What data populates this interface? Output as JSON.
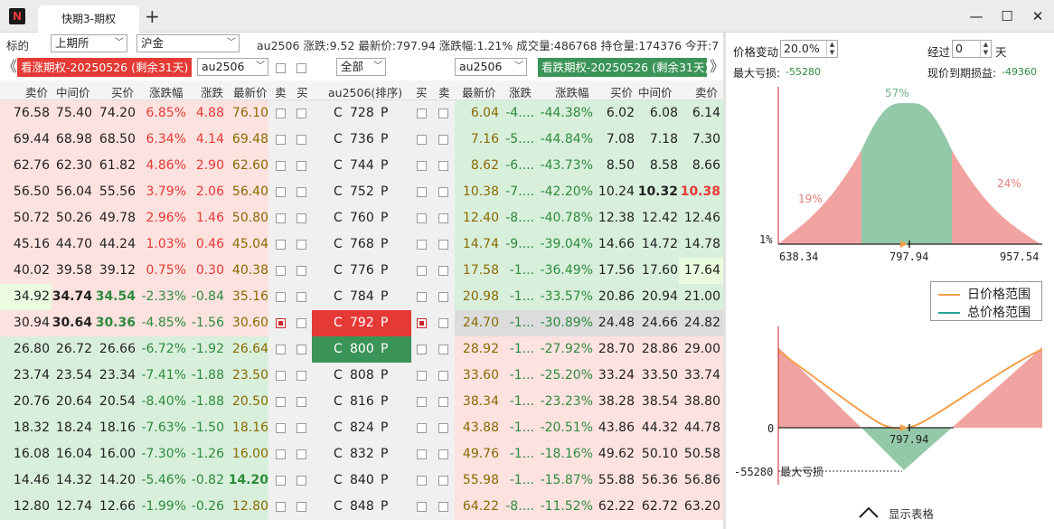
{
  "window": {
    "tab_title": "快期3-期权",
    "add_tab": "+",
    "minimize": "—",
    "maximize": "☐",
    "close": "✕",
    "logo": "N"
  },
  "filter": {
    "label": "标的",
    "exchange": "上期所",
    "product": "沪金",
    "info": "au2506 涨跌:9.52 最新价:797.94 涨跌幅:1.21% 成交量:486768 持仓量:174376 今开:7"
  },
  "optbar": {
    "call_badge": "看涨期权-20250526 (剩余31天)",
    "call_month": "au2506",
    "filter_all": "全部",
    "put_month": "au2506",
    "put_badge": "看跌期权-20250526 (剩余31天)",
    "prev": "《",
    "next": "》",
    "call_color": "#e53935",
    "put_color": "#3a9457"
  },
  "headers": {
    "ask": "卖价",
    "mid": "中间价",
    "bid": "买价",
    "chg_pct": "涨跌幅",
    "chg": "涨跌",
    "last": "最新价",
    "sell": "卖",
    "buy": "买",
    "strike": "au2506(排序)",
    "buy2": "买",
    "sell2": "卖",
    "last2": "最新价",
    "chg2": "涨跌",
    "chg_pct2": "涨跌幅",
    "bid2": "买价",
    "mid2": "中间价",
    "ask2": "卖价"
  },
  "rows": [
    {
      "ca": "76.58",
      "cm": "75.40",
      "cb": "74.20",
      "cp": "6.85%",
      "cc": "4.88",
      "cl": "76.10",
      "c": "C",
      "k": "728",
      "p": "P",
      "pl": "6.04",
      "pc": "-4....",
      "pp": "-44.38%",
      "pb": "6.02",
      "pm": "6.08",
      "pa": "6.14"
    },
    {
      "ca": "69.44",
      "cm": "68.98",
      "cb": "68.50",
      "cp": "6.34%",
      "cc": "4.14",
      "cl": "69.48",
      "c": "C",
      "k": "736",
      "p": "P",
      "pl": "7.16",
      "pc": "-5....",
      "pp": "-44.84%",
      "pb": "7.08",
      "pm": "7.18",
      "pa": "7.30"
    },
    {
      "ca": "62.76",
      "cm": "62.30",
      "cb": "61.82",
      "cp": "4.86%",
      "cc": "2.90",
      "cl": "62.60",
      "c": "C",
      "k": "744",
      "p": "P",
      "pl": "8.62",
      "pc": "-6....",
      "pp": "-43.73%",
      "pb": "8.50",
      "pm": "8.58",
      "pa": "8.66"
    },
    {
      "ca": "56.50",
      "cm": "56.04",
      "cb": "55.56",
      "cp": "3.79%",
      "cc": "2.06",
      "cl": "56.40",
      "c": "C",
      "k": "752",
      "p": "P",
      "pl": "10.38",
      "pc": "-7....",
      "pp": "-42.20%",
      "pb": "10.24",
      "pm": "10.32",
      "pa": "10.38"
    },
    {
      "ca": "50.72",
      "cm": "50.26",
      "cb": "49.78",
      "cp": "2.96%",
      "cc": "1.46",
      "cl": "50.80",
      "c": "C",
      "k": "760",
      "p": "P",
      "pl": "12.40",
      "pc": "-8....",
      "pp": "-40.78%",
      "pb": "12.38",
      "pm": "12.42",
      "pa": "12.46"
    },
    {
      "ca": "45.16",
      "cm": "44.70",
      "cb": "44.24",
      "cp": "1.03%",
      "cc": "0.46",
      "cl": "45.04",
      "c": "C",
      "k": "768",
      "p": "P",
      "pl": "14.74",
      "pc": "-9....",
      "pp": "-39.04%",
      "pb": "14.66",
      "pm": "14.72",
      "pa": "14.78"
    },
    {
      "ca": "40.02",
      "cm": "39.58",
      "cb": "39.12",
      "cp": "0.75%",
      "cc": "0.30",
      "cl": "40.38",
      "c": "C",
      "k": "776",
      "p": "P",
      "pl": "17.58",
      "pc": "-1...",
      "pp": "-36.49%",
      "pb": "17.56",
      "pm": "17.60",
      "pa": "17.64"
    },
    {
      "ca": "34.92",
      "cm": "34.74",
      "cb": "34.54",
      "cp": "-2.33%",
      "cc": "-0.84",
      "cl": "35.16",
      "c": "C",
      "k": "784",
      "p": "P",
      "pl": "20.98",
      "pc": "-1...",
      "pp": "-33.57%",
      "pb": "20.86",
      "pm": "20.94",
      "pa": "21.00"
    },
    {
      "ca": "30.94",
      "cm": "30.64",
      "cb": "30.36",
      "cp": "-4.85%",
      "cc": "-1.56",
      "cl": "30.60",
      "c": "C",
      "k": "792",
      "p": "P",
      "pl": "24.70",
      "pc": "-1...",
      "pp": "-30.89%",
      "pb": "24.48",
      "pm": "24.66",
      "pa": "24.82"
    },
    {
      "ca": "26.80",
      "cm": "26.72",
      "cb": "26.66",
      "cp": "-6.72%",
      "cc": "-1.92",
      "cl": "26.64",
      "c": "C",
      "k": "800",
      "p": "P",
      "pl": "28.92",
      "pc": "-1...",
      "pp": "-27.92%",
      "pb": "28.70",
      "pm": "28.86",
      "pa": "29.00"
    },
    {
      "ca": "23.74",
      "cm": "23.54",
      "cb": "23.34",
      "cp": "-7.41%",
      "cc": "-1.88",
      "cl": "23.50",
      "c": "C",
      "k": "808",
      "p": "P",
      "pl": "33.60",
      "pc": "-1...",
      "pp": "-25.20%",
      "pb": "33.24",
      "pm": "33.50",
      "pa": "33.74"
    },
    {
      "ca": "20.76",
      "cm": "20.64",
      "cb": "20.54",
      "cp": "-8.40%",
      "cc": "-1.88",
      "cl": "20.50",
      "c": "C",
      "k": "816",
      "p": "P",
      "pl": "38.34",
      "pc": "-1...",
      "pp": "-23.23%",
      "pb": "38.28",
      "pm": "38.54",
      "pa": "38.80"
    },
    {
      "ca": "18.32",
      "cm": "18.24",
      "cb": "18.16",
      "cp": "-7.63%",
      "cc": "-1.50",
      "cl": "18.16",
      "c": "C",
      "k": "824",
      "p": "P",
      "pl": "43.88",
      "pc": "-1...",
      "pp": "-20.51%",
      "pb": "43.86",
      "pm": "44.32",
      "pa": "44.78"
    },
    {
      "ca": "16.08",
      "cm": "16.04",
      "cb": "16.00",
      "cp": "-7.30%",
      "cc": "-1.26",
      "cl": "16.00",
      "c": "C",
      "k": "832",
      "p": "P",
      "pl": "49.76",
      "pc": "-1...",
      "pp": "-18.16%",
      "pb": "49.62",
      "pm": "50.10",
      "pa": "50.58"
    },
    {
      "ca": "14.46",
      "cm": "14.32",
      "cb": "14.20",
      "cp": "-5.46%",
      "cc": "-0.82",
      "cl": "14.20",
      "c": "C",
      "k": "840",
      "p": "P",
      "pl": "55.98",
      "pc": "-1...",
      "pp": "-15.87%",
      "pb": "55.88",
      "pm": "56.36",
      "pa": "56.86"
    },
    {
      "ca": "12.80",
      "cm": "12.74",
      "cb": "12.66",
      "cp": "-1.99%",
      "cc": "-0.26",
      "cl": "12.80",
      "c": "C",
      "k": "848",
      "p": "P",
      "pl": "64.22",
      "pc": "-8....",
      "pp": "-11.52%",
      "pb": "62.22",
      "pm": "62.72",
      "pa": "63.20"
    }
  ],
  "right": {
    "price_change_label": "价格变动",
    "price_change": "20.0%",
    "days_label": "经过",
    "days": "0",
    "days_unit": "天",
    "max_loss_label": "最大亏损:",
    "max_loss": "-55280",
    "pnl_label": "现价到期损益:",
    "pnl": "-49360",
    "dist": {
      "pct_mid": "57%",
      "pct_left": "19%",
      "pct_right": "24%",
      "y_label": "1%",
      "x_left": "638.34",
      "x_mid": "797.94",
      "x_right": "957.54"
    },
    "legend": {
      "daily": "日价格范围",
      "total": "总价格范围",
      "daily_color": "#f5a04a",
      "total_color": "#29a39a"
    },
    "payoff": {
      "zero": "0",
      "price": "797.94",
      "min": "-55280",
      "min_label": "最大亏损"
    },
    "show_table": "显示表格"
  }
}
